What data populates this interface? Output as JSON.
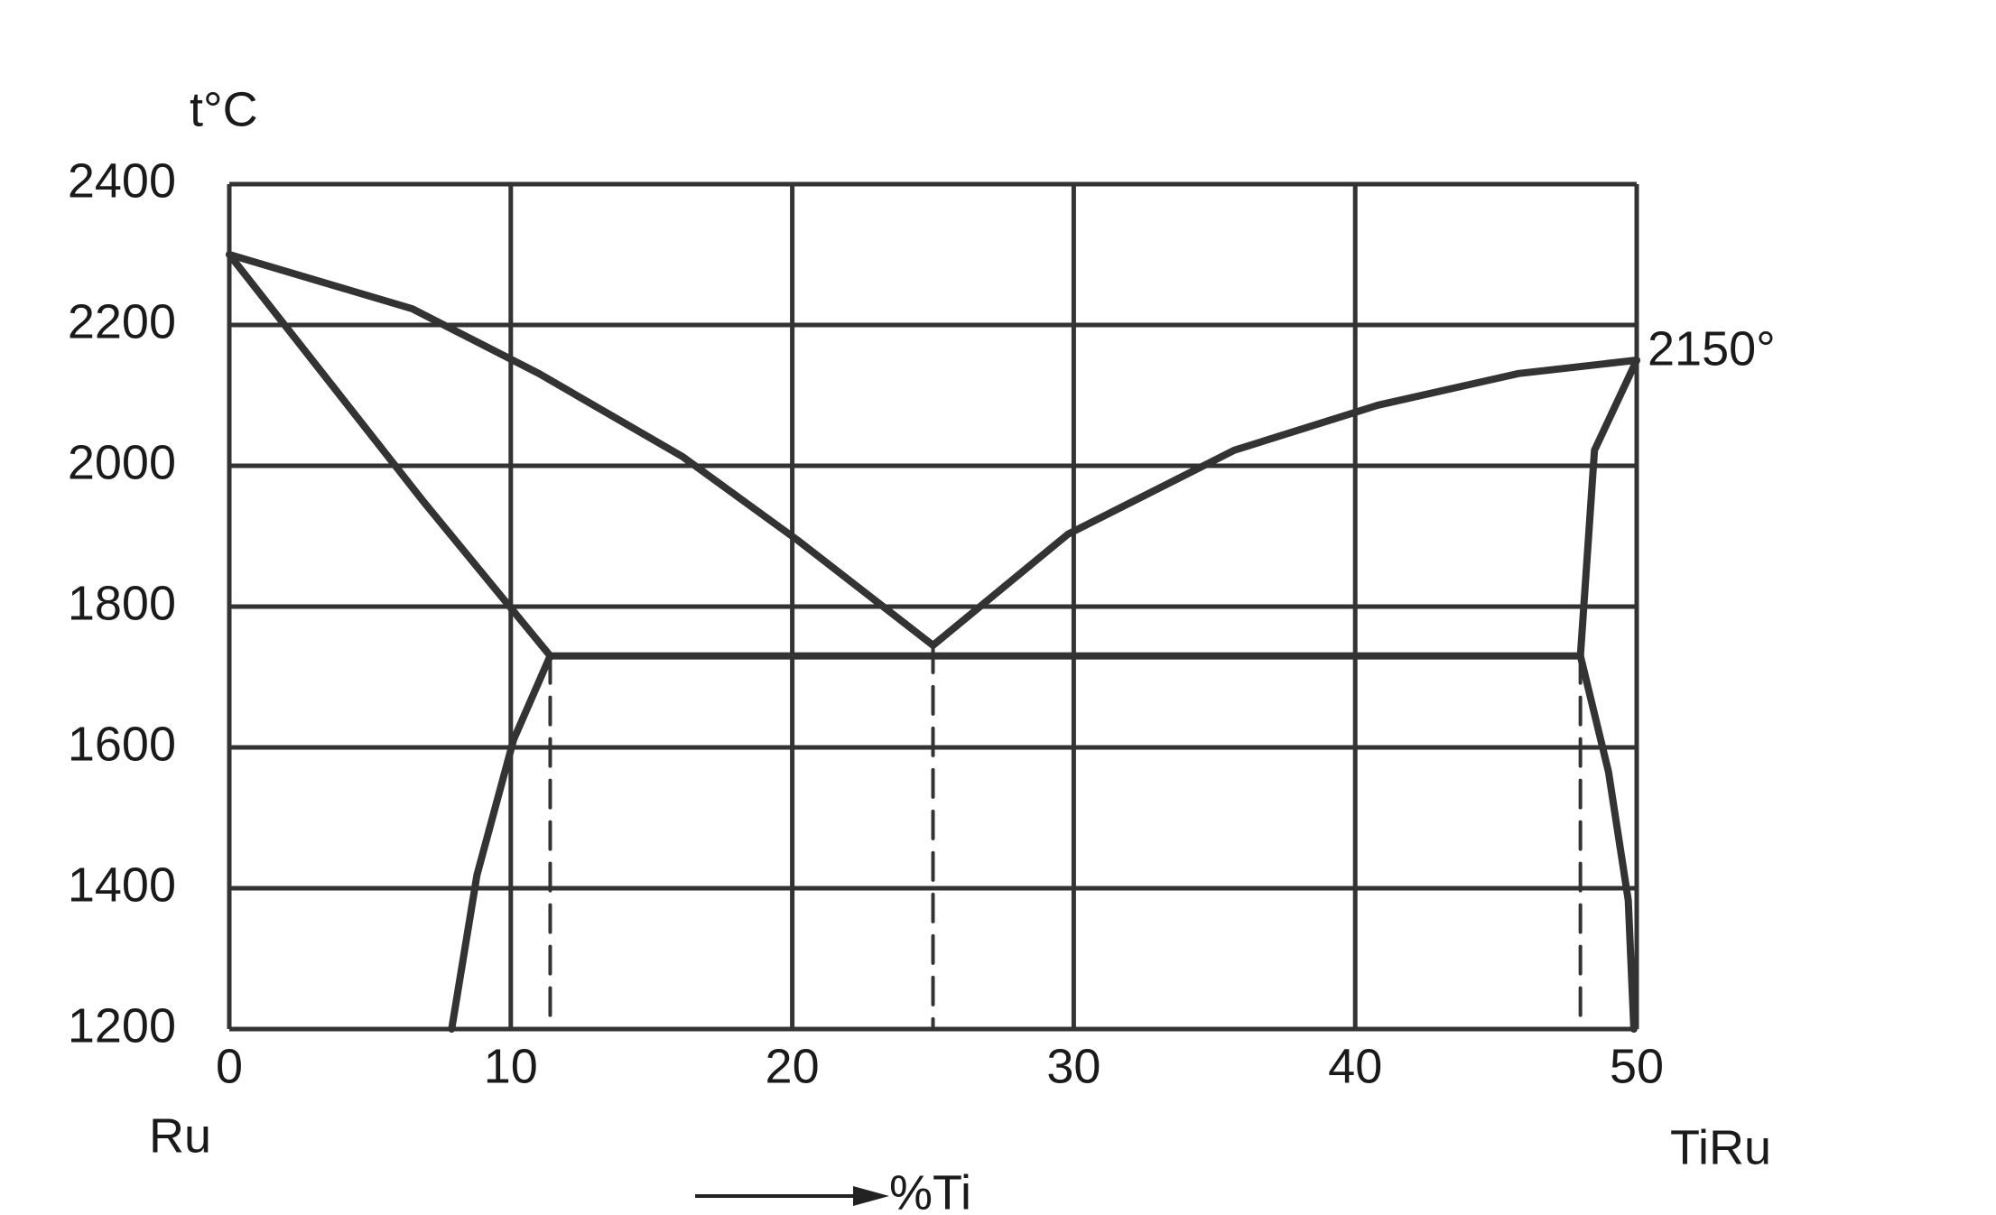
{
  "chart_data": {
    "type": "line",
    "y_label": "t°C",
    "x_label": "%Ti",
    "x_start_label": "Ru",
    "x_end_label": "TiRu",
    "annotation": "2150°",
    "xlim": [
      0,
      50
    ],
    "xticks": [
      0,
      10,
      20,
      30,
      40,
      50
    ],
    "ylim": [
      1200,
      2400
    ],
    "yticks": [
      1200,
      1400,
      1600,
      1800,
      2000,
      2200,
      2400
    ],
    "grid": true,
    "series": [
      {
        "color": "#333333",
        "style": "solid",
        "x": [
          0,
          6.5,
          11,
          16.1,
          20.2,
          25
        ],
        "values": [
          2300,
          2223,
          2131,
          2013,
          1894,
          1745
        ]
      },
      {
        "color": "#333333",
        "style": "solid",
        "x": [
          25,
          29.8,
          35.7,
          40.8,
          45.8,
          50
        ],
        "values": [
          1745,
          1903,
          2022,
          2086,
          2131,
          2150
        ]
      },
      {
        "color": "#333333",
        "style": "solid",
        "x": [
          0,
          6.9,
          11.4
        ],
        "values": [
          2300,
          1949,
          1730
        ]
      },
      {
        "color": "#333333",
        "style": "solid",
        "x": [
          11.4,
          10.1,
          8.8,
          7.9
        ],
        "values": [
          1730,
          1611,
          1419,
          1200
        ]
      },
      {
        "color": "#333333",
        "style": "solid",
        "x": [
          11.4,
          48
        ],
        "values": [
          1730,
          1730
        ]
      },
      {
        "color": "#333333",
        "style": "solid",
        "x": [
          50,
          48.5,
          48
        ],
        "values": [
          2150,
          2022,
          1730
        ]
      },
      {
        "color": "#333333",
        "style": "solid",
        "x": [
          48,
          49,
          49.7,
          49.9
        ],
        "values": [
          1730,
          1565,
          1383,
          1200
        ]
      },
      {
        "color": "#333333",
        "style": "dashed",
        "x": [
          11.4,
          11.4
        ],
        "values": [
          1730,
          1200
        ]
      },
      {
        "color": "#333333",
        "style": "dashed",
        "x": [
          25,
          25
        ],
        "values": [
          1745,
          1200
        ]
      },
      {
        "color": "#333333",
        "style": "dashed",
        "x": [
          48,
          48
        ],
        "values": [
          1730,
          1200
        ]
      }
    ]
  }
}
